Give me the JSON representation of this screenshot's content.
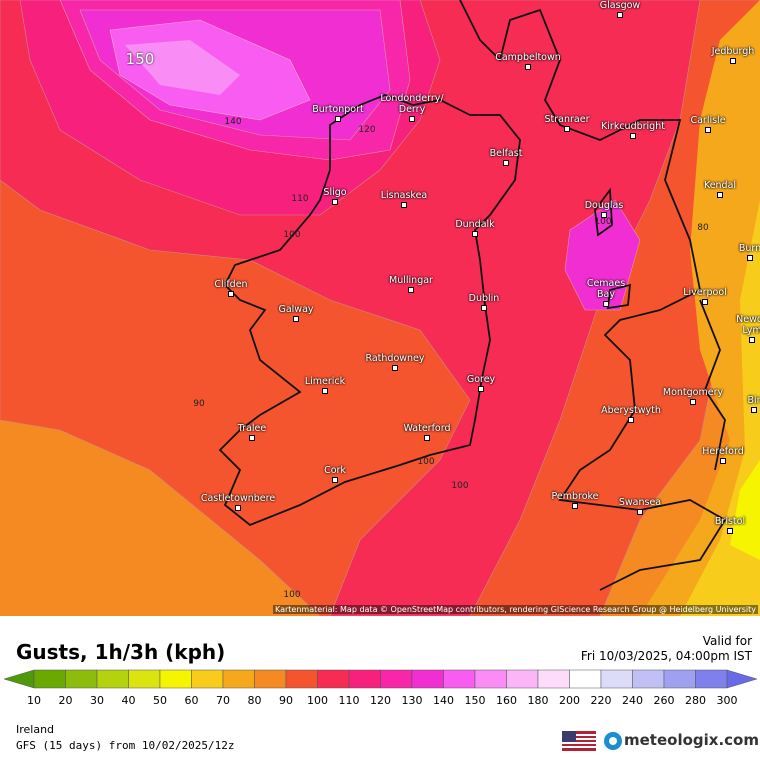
{
  "map": {
    "attribution": "Kartenmaterial: Map data © OpenStreetMap contributors, rendering GIScience Research Group @ Heidelberg University",
    "cities": [
      "Glasgow",
      "Jedburgh",
      "Campbeltown",
      "Burtonport",
      "Londonderry/\nDerry",
      "Stranraer",
      "Kirkcudbright",
      "Carlisle",
      "Belfast",
      "Sligo",
      "Lisnaskea",
      "Douglas",
      "Kendal",
      "Dundalk",
      "Burn",
      "Mullingar",
      "Cemaes\nBay",
      "Liverpool",
      "Dublin",
      "Clifden",
      "Galway",
      "Newca\nLym",
      "Rathdowney",
      "Limerick",
      "Gorey",
      "Montgomery",
      "Bir",
      "Aberystwyth",
      "Tralee",
      "Waterford",
      "Hereford",
      "Cork",
      "Pembroke",
      "Castletownbere",
      "Swansea",
      "Bristol"
    ],
    "contour_labels": [
      150,
      140,
      120,
      110,
      100,
      100,
      90,
      100,
      100,
      100,
      80
    ]
  },
  "footer": {
    "title": "Gusts, 1h/3h (kph)",
    "valid_label": "Valid for",
    "valid_time": "Fri 10/03/2025, 04:00pm IST",
    "region": "Ireland",
    "model": "GFS (15 days) from 10/02/2025/12z",
    "brand": "meteologix.com"
  },
  "legend": {
    "ticks": [
      10,
      20,
      30,
      40,
      50,
      60,
      70,
      80,
      90,
      100,
      110,
      120,
      130,
      140,
      150,
      160,
      180,
      200,
      220,
      240,
      260,
      280,
      300
    ],
    "colors": [
      "#4f9a0a",
      "#6aaa00",
      "#8dbd0a",
      "#b5d20f",
      "#dce410",
      "#f7f400",
      "#f8cc1b",
      "#f6a81c",
      "#f68a22",
      "#f4552f",
      "#f62c55",
      "#f8207d",
      "#f826a8",
      "#f02ed2",
      "#f95cf0",
      "#f98cf5",
      "#fbb6f8",
      "#fddcfb",
      "#ffffff",
      "#dcdcf8",
      "#c0c0f4",
      "#a0a0f0",
      "#8080ec",
      "#6a6ae8"
    ]
  }
}
